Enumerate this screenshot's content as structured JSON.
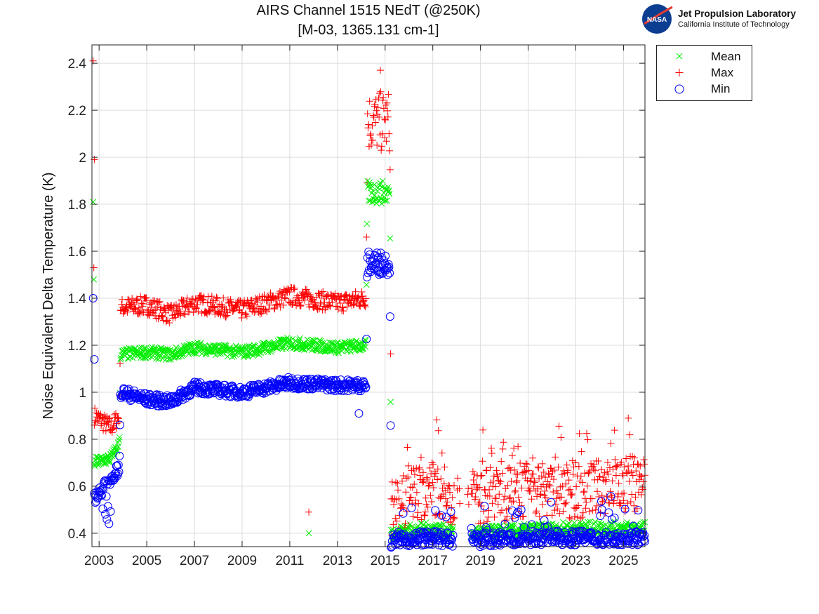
{
  "chart_data": {
    "type": "scatter",
    "title": "AIRS Channel 1515 NEdT (@250K)",
    "subtitle": "[M-03, 1365.131 cm-1]",
    "xlabel": "",
    "ylabel": "Noise Equivalent Delta Temperature (K)",
    "xlim": [
      2002.7,
      2025.9
    ],
    "ylim": [
      0.343,
      2.478
    ],
    "xticks": [
      2003,
      2005,
      2007,
      2009,
      2011,
      2013,
      2015,
      2017,
      2019,
      2021,
      2023,
      2025
    ],
    "xtick_labels": [
      "2003",
      "2005",
      "2007",
      "2009",
      "2011",
      "2013",
      "2015",
      "2017",
      "2019",
      "2021",
      "2023",
      "2025"
    ],
    "yticks": [
      0.4,
      0.6,
      0.8,
      1.0,
      1.2,
      1.4,
      1.6,
      1.8,
      2.0,
      2.2,
      2.4
    ],
    "ytick_labels": [
      "0.4",
      "0.6",
      "0.8",
      "1",
      "1.2",
      "1.4",
      "1.6",
      "1.8",
      "2",
      "2.2",
      "2.4"
    ],
    "grid": true,
    "legend_placement": "outside-top-right",
    "series": [
      {
        "name": "Mean",
        "marker": "x",
        "color": "#00ee00",
        "x": [
          2002.8,
          2003.5,
          2003.85,
          2003.9,
          2005,
          2006,
          2007,
          2009,
          2011,
          2013,
          2014.2,
          2014.25,
          2015.2,
          2015.25,
          2017,
          2017.8,
          2018.7,
          2021,
          2023,
          2025.9
        ],
        "values": [
          0.7,
          0.72,
          0.78,
          1.16,
          1.17,
          1.16,
          1.19,
          1.17,
          1.21,
          1.19,
          1.2,
          1.85,
          1.85,
          0.4,
          0.42,
          0.4,
          0.4,
          0.41,
          0.42,
          0.42
        ],
        "outliers": [
          [
            2002.75,
            1.81
          ],
          [
            2002.78,
            1.48
          ],
          [
            2011.8,
            0.4
          ]
        ]
      },
      {
        "name": "Max",
        "marker": "+",
        "color": "#ff0000",
        "x": [
          2002.8,
          2003.5,
          2003.85,
          2003.9,
          2005,
          2006,
          2007,
          2009,
          2011,
          2013,
          2014.2,
          2014.25,
          2015.2,
          2015.25,
          2017,
          2017.8,
          2018.7,
          2021,
          2023,
          2025.9
        ],
        "values": [
          0.9,
          0.85,
          0.9,
          1.36,
          1.37,
          1.33,
          1.38,
          1.35,
          1.41,
          1.38,
          1.4,
          2.15,
          2.15,
          0.5,
          0.6,
          0.55,
          0.55,
          0.58,
          0.58,
          0.62
        ],
        "outliers": [
          [
            2002.75,
            2.41
          ],
          [
            2002.8,
            1.99
          ],
          [
            2002.78,
            1.53
          ],
          [
            2011.8,
            0.49
          ],
          [
            2014.8,
            2.37
          ],
          [
            2025.2,
            0.89
          ]
        ]
      },
      {
        "name": "Min",
        "marker": "o",
        "color": "#0000ff",
        "x": [
          2002.8,
          2003.5,
          2003.85,
          2003.9,
          2005,
          2006,
          2007,
          2009,
          2011,
          2013,
          2014.2,
          2014.25,
          2015.2,
          2015.25,
          2017,
          2017.8,
          2018.7,
          2021,
          2023,
          2025.9
        ],
        "values": [
          0.55,
          0.63,
          0.68,
          1.0,
          0.97,
          0.96,
          1.02,
          1.0,
          1.04,
          1.03,
          1.03,
          1.55,
          1.55,
          0.37,
          0.38,
          0.37,
          0.37,
          0.38,
          0.38,
          0.38
        ],
        "outliers": [
          [
            2002.75,
            1.4
          ],
          [
            2002.8,
            1.14
          ],
          [
            2013.9,
            0.91
          ]
        ]
      }
    ],
    "data_gap": [
      2017.85,
      2018.6
    ]
  },
  "logo": {
    "name": "NASA",
    "line1": "Jet Propulsion Laboratory",
    "line2": "California Institute of Technology"
  }
}
